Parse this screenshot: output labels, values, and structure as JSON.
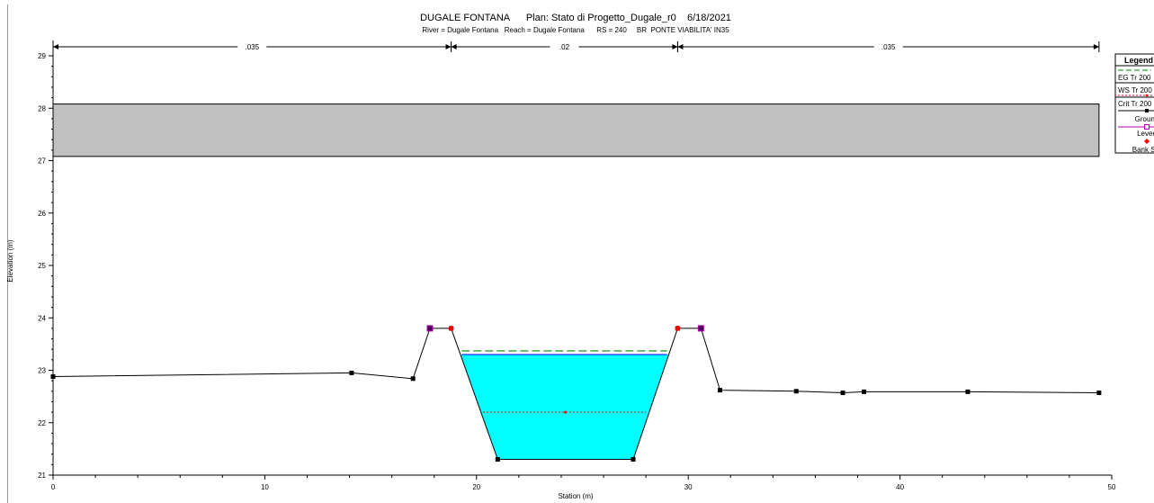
{
  "chart_data": {
    "type": "line",
    "title": "DUGALE FONTANA      Plan: Stato di Progetto_Dugale_r0    6/18/2021",
    "subtitle": "River = Dugale Fontana   Reach = Dugale Fontana      RS = 240     BR  PONTE VIABILITA' IN35",
    "xlabel": "Station (m)",
    "ylabel": "Elevation (m)",
    "xlim": [
      0,
      50
    ],
    "ylim": [
      21,
      29.2
    ],
    "x_ticks": [
      "0",
      "10",
      "20",
      "30",
      "40",
      "50"
    ],
    "y_ticks": [
      "21",
      "22",
      "23",
      "24",
      "25",
      "26",
      "27",
      "28",
      "29"
    ],
    "mannings": [
      {
        "label": ".035",
        "from": 0,
        "to": 18.8
      },
      {
        "label": ".02",
        "from": 18.8,
        "to": 29.5
      },
      {
        "label": ".035",
        "from": 29.5,
        "to": 49.4
      }
    ],
    "deck": {
      "x_start": 0,
      "x_end": 49.4,
      "low_chord": 27.08,
      "high_chord": 28.08
    },
    "series": [
      {
        "name": "EG Tr 200",
        "color": "#2ca02c",
        "style": "dashed",
        "x": [
          19.3,
          29.0
        ],
        "y": [
          23.37,
          23.37
        ]
      },
      {
        "name": "WS Tr 200",
        "color": "#0000ff",
        "style": "solid-water",
        "x": [
          19.3,
          29.0
        ],
        "y": [
          23.3,
          23.3
        ]
      },
      {
        "name": "Crit Tr 200",
        "color": "#ff0000",
        "style": "dotted",
        "x": [
          20.3,
          24.2,
          28.0
        ],
        "y": [
          22.2,
          22.2,
          22.2
        ]
      },
      {
        "name": "Ground",
        "color": "#000000",
        "style": "solid-markers",
        "x": [
          0,
          14.1,
          17,
          17.8,
          18.8,
          21,
          27.4,
          29.5,
          30.6,
          31.5,
          35.1,
          37.3,
          38.3,
          43.2,
          49.4
        ],
        "y": [
          22.88,
          22.95,
          22.84,
          23.8,
          23.8,
          21.3,
          21.3,
          23.8,
          23.8,
          22.62,
          22.6,
          22.57,
          22.59,
          22.59,
          22.57
        ]
      },
      {
        "name": "Levee",
        "color": "#b000b0",
        "style": "markers",
        "x": [
          17.8,
          30.6
        ],
        "y": [
          23.8,
          23.8
        ]
      },
      {
        "name": "Bank Sta",
        "color": "#ff0000",
        "style": "markers",
        "x": [
          18.8,
          29.5
        ],
        "y": [
          23.8,
          23.8
        ]
      }
    ],
    "legend": {
      "title": "Legend",
      "entries": [
        "EG Tr 200",
        "WS Tr 200",
        "Crit Tr 200",
        "Ground",
        "Levee",
        "Bank Sta"
      ],
      "placement": "top-right"
    },
    "colors": {
      "deck": "#c0c0c0",
      "water": "#00ffff"
    }
  }
}
